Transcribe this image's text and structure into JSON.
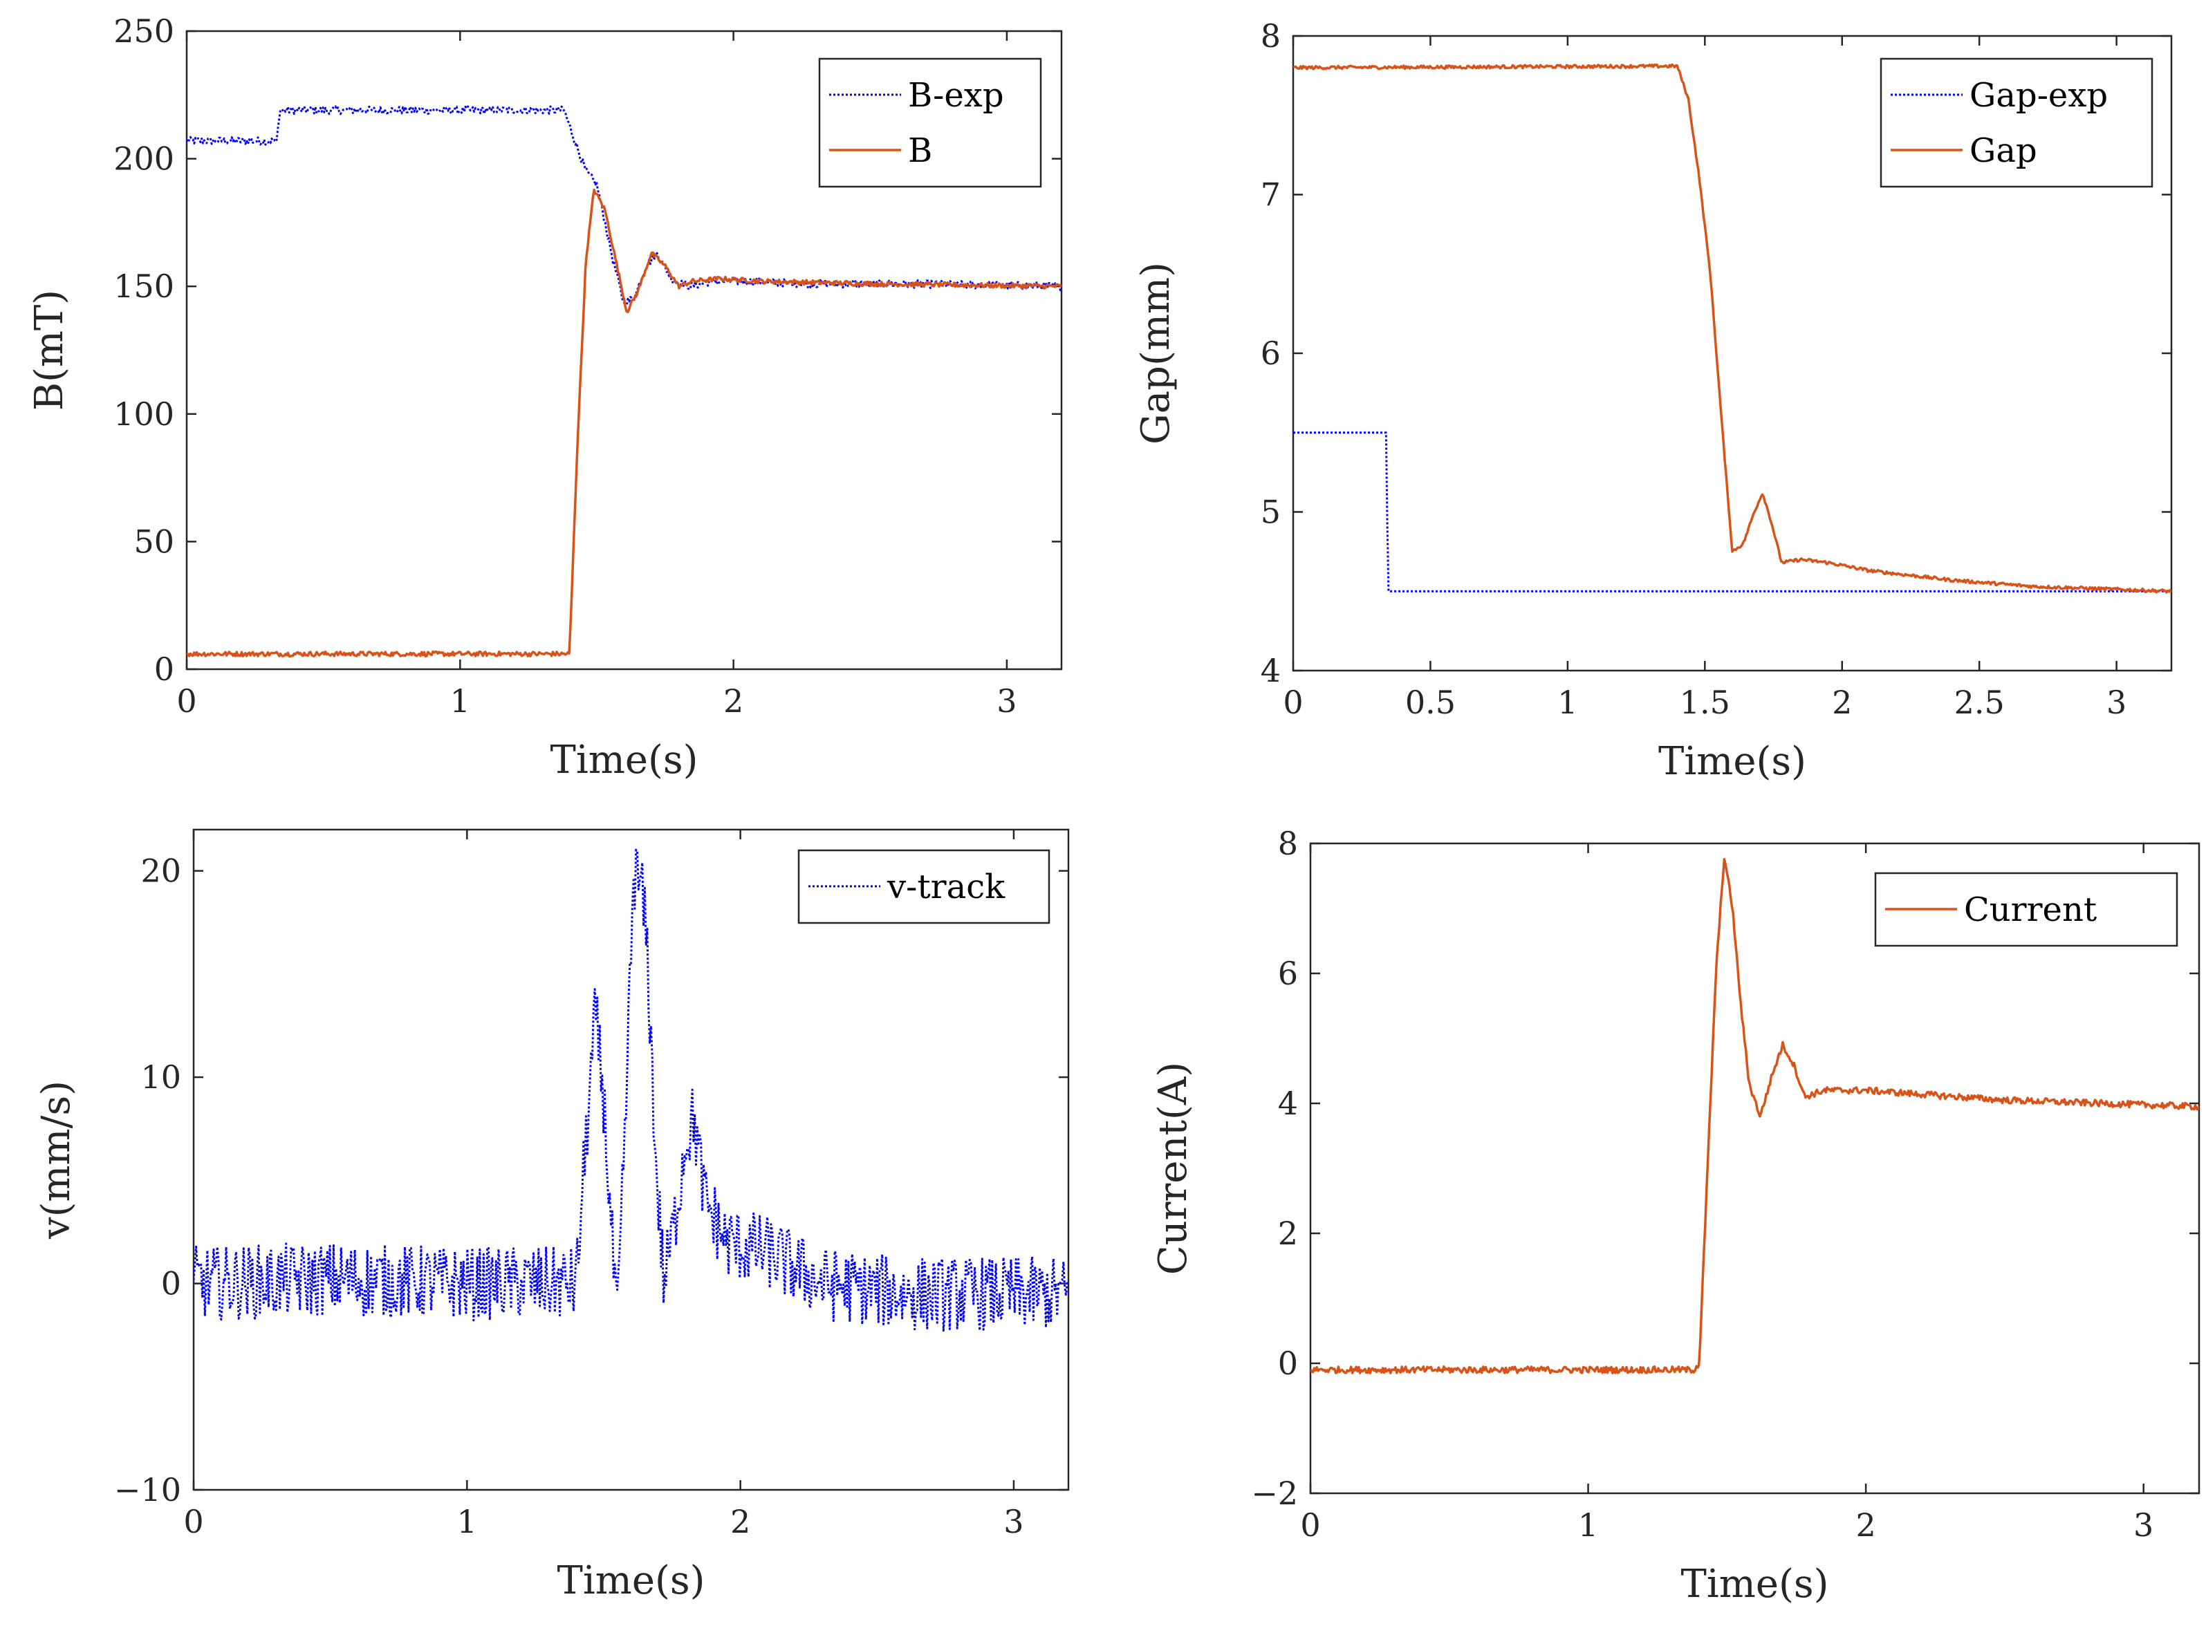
{
  "chart_data": [
    {
      "id": "b",
      "type": "line",
      "xlabel": "Time(s)",
      "ylabel": "B(mT)",
      "xlim": [
        0,
        3.2
      ],
      "ylim": [
        0,
        250
      ],
      "xticks": [
        0,
        1,
        2,
        3
      ],
      "xtick_labels": [
        "0",
        "1",
        "2",
        "3"
      ],
      "yticks": [
        0,
        50,
        100,
        150,
        200,
        250
      ],
      "ytick_labels": [
        "0",
        "50",
        "100",
        "150",
        "200",
        "250"
      ],
      "legend": "top-right",
      "series": [
        {
          "name": "B-exp",
          "style": "dotted",
          "color": "#0000ff",
          "noise": 1.5,
          "points": [
            [
              0,
              207
            ],
            [
              0.33,
              207
            ],
            [
              0.34,
              219
            ],
            [
              1.38,
              219
            ],
            [
              1.42,
              207
            ],
            [
              1.46,
              195
            ],
            [
              1.5,
              190
            ],
            [
              1.56,
              160
            ],
            [
              1.6,
              143
            ],
            [
              1.64,
              146
            ],
            [
              1.68,
              158
            ],
            [
              1.72,
              163
            ],
            [
              1.78,
              152
            ],
            [
              1.84,
              150
            ],
            [
              1.92,
              152
            ],
            [
              2.0,
              152
            ],
            [
              2.3,
              151
            ],
            [
              2.6,
              151
            ],
            [
              3.2,
              150
            ]
          ]
        },
        {
          "name": "B",
          "style": "solid",
          "color": "#d95319",
          "noise": 0.9,
          "points": [
            [
              0,
              6
            ],
            [
              1.39,
              6
            ],
            [
              1.4,
              6
            ],
            [
              1.43,
              90
            ],
            [
              1.46,
              160
            ],
            [
              1.49,
              188
            ],
            [
              1.53,
              180
            ],
            [
              1.57,
              160
            ],
            [
              1.61,
              140
            ],
            [
              1.65,
              148
            ],
            [
              1.7,
              163
            ],
            [
              1.75,
              158
            ],
            [
              1.8,
              150
            ],
            [
              1.85,
              152
            ],
            [
              1.95,
              153
            ],
            [
              2.1,
              152
            ],
            [
              2.5,
              151
            ],
            [
              3.2,
              150
            ]
          ]
        }
      ]
    },
    {
      "id": "gap",
      "type": "line",
      "xlabel": "Time(s)",
      "ylabel": "Gap(mm)",
      "xlim": [
        0,
        3.2
      ],
      "ylim": [
        4,
        8
      ],
      "xticks": [
        0,
        0.5,
        1,
        1.5,
        2,
        2.5,
        3
      ],
      "xtick_labels": [
        "0",
        "0.5",
        "1",
        "1.5",
        "2",
        "2.5",
        "3"
      ],
      "yticks": [
        4,
        5,
        6,
        7,
        8
      ],
      "ytick_labels": [
        "4",
        "5",
        "6",
        "7",
        "8"
      ],
      "legend": "top-right",
      "series": [
        {
          "name": "Gap-exp",
          "style": "dotted",
          "color": "#0000ff",
          "noise": 0,
          "points": [
            [
              0,
              5.5
            ],
            [
              0.34,
              5.5
            ],
            [
              0.345,
              4.5
            ],
            [
              3.2,
              4.5
            ]
          ]
        },
        {
          "name": "Gap",
          "style": "solid",
          "color": "#d95319",
          "noise": 0.01,
          "points": [
            [
              0,
              7.8
            ],
            [
              1.4,
              7.81
            ],
            [
              1.44,
              7.6
            ],
            [
              1.48,
              7.1
            ],
            [
              1.52,
              6.5
            ],
            [
              1.56,
              5.6
            ],
            [
              1.6,
              4.75
            ],
            [
              1.64,
              4.8
            ],
            [
              1.68,
              5.0
            ],
            [
              1.71,
              5.12
            ],
            [
              1.74,
              4.95
            ],
            [
              1.78,
              4.68
            ],
            [
              1.85,
              4.7
            ],
            [
              1.95,
              4.68
            ],
            [
              2.1,
              4.63
            ],
            [
              2.4,
              4.57
            ],
            [
              2.7,
              4.53
            ],
            [
              3.2,
              4.5
            ]
          ]
        }
      ]
    },
    {
      "id": "v",
      "type": "line",
      "xlabel": "Time(s)",
      "ylabel": "v(mm/s)",
      "xlim": [
        0,
        3.2
      ],
      "ylim": [
        -10,
        22
      ],
      "xticks": [
        0,
        1,
        2,
        3
      ],
      "xtick_labels": [
        "0",
        "1",
        "2",
        "3"
      ],
      "yticks": [
        -10,
        0,
        10,
        20
      ],
      "ytick_labels": [
        "−10",
        "0",
        "10",
        "20"
      ],
      "legend": "top-right",
      "series": [
        {
          "name": "v-track",
          "style": "dotted",
          "color": "#0000ff",
          "noise": 1.8,
          "points": [
            [
              0,
              0
            ],
            [
              0.5,
              0.2
            ],
            [
              1.0,
              0
            ],
            [
              1.4,
              0
            ],
            [
              1.43,
              6
            ],
            [
              1.47,
              13
            ],
            [
              1.5,
              9
            ],
            [
              1.53,
              2
            ],
            [
              1.55,
              -2
            ],
            [
              1.58,
              8
            ],
            [
              1.61,
              20
            ],
            [
              1.64,
              19
            ],
            [
              1.66,
              16
            ],
            [
              1.69,
              6
            ],
            [
              1.72,
              0
            ],
            [
              1.76,
              3
            ],
            [
              1.8,
              7
            ],
            [
              1.83,
              8
            ],
            [
              1.87,
              4
            ],
            [
              1.95,
              2
            ],
            [
              2.1,
              1.5
            ],
            [
              2.3,
              0
            ],
            [
              2.6,
              -0.5
            ],
            [
              3.2,
              -0.5
            ]
          ]
        }
      ]
    },
    {
      "id": "current",
      "type": "line",
      "xlabel": "Time(s)",
      "ylabel": "Current(A)",
      "xlim": [
        0,
        3.2
      ],
      "ylim": [
        -2,
        8
      ],
      "xticks": [
        0,
        1,
        2,
        3
      ],
      "xtick_labels": [
        "0",
        "1",
        "2",
        "3"
      ],
      "yticks": [
        -2,
        0,
        2,
        4,
        6,
        8
      ],
      "ytick_labels": [
        "−2",
        "0",
        "2",
        "4",
        "6",
        "8"
      ],
      "legend": "top-right",
      "series": [
        {
          "name": "Current",
          "style": "solid",
          "color": "#d95319",
          "noise": 0.05,
          "points": [
            [
              0,
              -0.1
            ],
            [
              1.38,
              -0.1
            ],
            [
              1.4,
              0
            ],
            [
              1.43,
              3
            ],
            [
              1.46,
              6
            ],
            [
              1.49,
              7.8
            ],
            [
              1.52,
              7
            ],
            [
              1.55,
              5.5
            ],
            [
              1.58,
              4.3
            ],
            [
              1.62,
              3.8
            ],
            [
              1.66,
              4.4
            ],
            [
              1.7,
              4.9
            ],
            [
              1.74,
              4.6
            ],
            [
              1.78,
              4.1
            ],
            [
              1.85,
              4.2
            ],
            [
              2.0,
              4.2
            ],
            [
              2.5,
              4.05
            ],
            [
              3.2,
              3.95
            ]
          ]
        }
      ]
    }
  ]
}
